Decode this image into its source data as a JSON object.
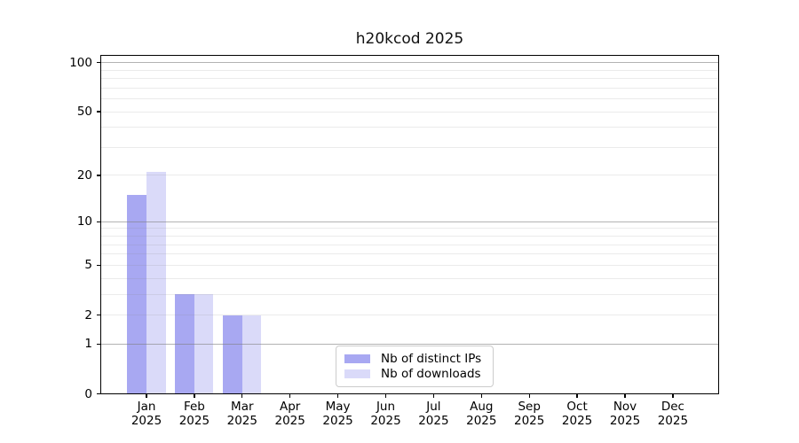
{
  "title": "h20kcod 2025",
  "legend": {
    "items": [
      {
        "label": "Nb of distinct IPs",
        "color": "#a8a8f2"
      },
      {
        "label": "Nb of downloads",
        "color": "#dadaf9"
      }
    ]
  },
  "colors": {
    "bar_distinct_ips": "#a8a8f2",
    "bar_downloads": "#dadaf9",
    "grid_major": "rgba(128,128,128,0.6)",
    "grid_minor": "rgba(128,128,128,0.16)",
    "axis": "#000000",
    "legend_border": "#cccccc"
  },
  "chart_data": {
    "type": "bar",
    "title": "h20kcod 2025",
    "xlabel": "",
    "ylabel": "",
    "categories": [
      "Jan 2025",
      "Feb 2025",
      "Mar 2025",
      "Apr 2025",
      "May 2025",
      "Jun 2025",
      "Jul 2025",
      "Aug 2025",
      "Sep 2025",
      "Oct 2025",
      "Nov 2025",
      "Dec 2025"
    ],
    "series": [
      {
        "name": "Nb of distinct IPs",
        "color": "#a8a8f2",
        "values": [
          15,
          3,
          2,
          0,
          0,
          0,
          0,
          0,
          0,
          0,
          0,
          0
        ]
      },
      {
        "name": "Nb of downloads",
        "color": "#dadaf9",
        "values": [
          21,
          3,
          2,
          0,
          0,
          0,
          0,
          0,
          0,
          0,
          0,
          0
        ]
      }
    ],
    "y_ticks": [
      0,
      1,
      2,
      5,
      10,
      20,
      50,
      100
    ],
    "y_scale": "log1p",
    "ylim": [
      0,
      111
    ],
    "grid": "horizontal; major gridlines at 1, 10, 100; minor at 2-9 and 20-90",
    "legend_position": "lower center inside plot"
  }
}
